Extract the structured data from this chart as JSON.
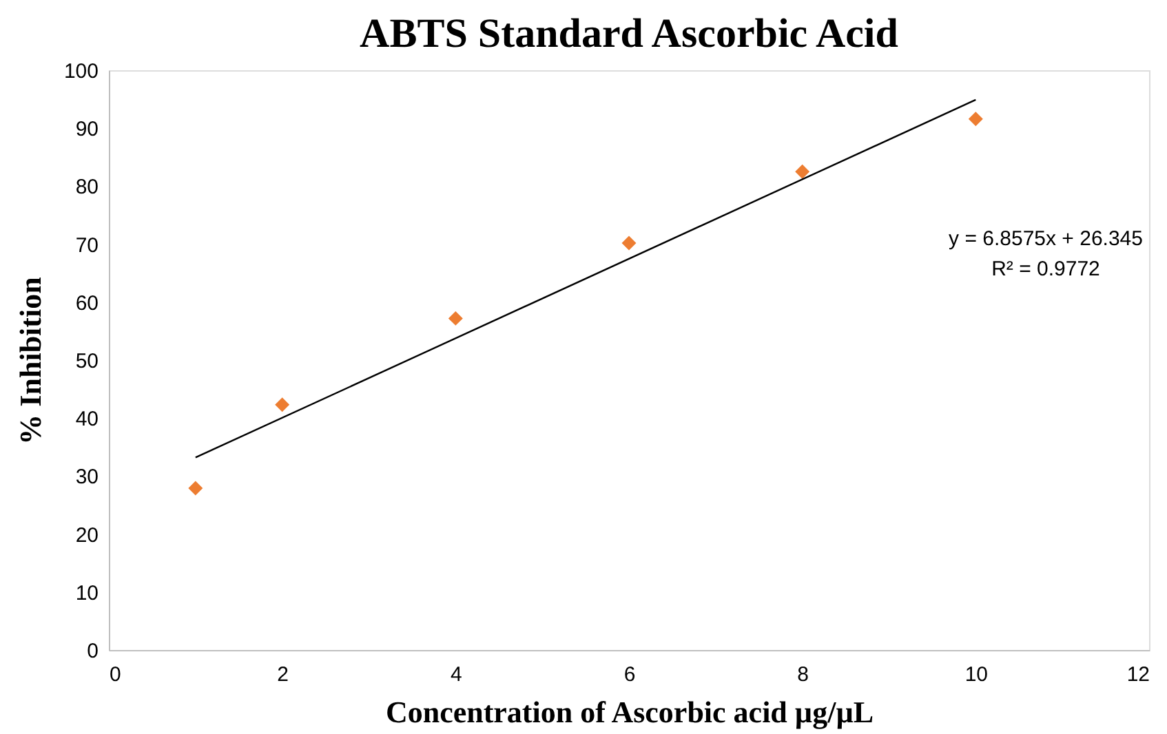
{
  "chart_data": {
    "type": "scatter",
    "title": "ABTS Standard Ascorbic Acid",
    "xlabel": "Concentration of Ascorbic acid µg/µL",
    "ylabel": "% Inhibition",
    "series": [
      {
        "color": "#ed7d31",
        "marker": "diamond",
        "x": [
          1,
          2,
          4,
          6,
          8,
          10
        ],
        "values": [
          27.9,
          42.3,
          57.2,
          70.2,
          82.5,
          91.6
        ]
      },
      {
        "type": "line",
        "color": "#000000",
        "line_style": "solid",
        "x": [
          1,
          10
        ],
        "values": [
          33.2,
          94.9
        ]
      }
    ],
    "annotations": [
      "y = 6.8575x + 26.345",
      "R² = 0.9772"
    ],
    "xlim": [
      0,
      12
    ],
    "xticks": [
      0,
      2,
      4,
      6,
      8,
      10,
      12
    ],
    "ylim": [
      0,
      100
    ],
    "yticks": [
      0,
      10,
      20,
      30,
      40,
      50,
      60,
      70,
      80,
      90,
      100
    ],
    "grid": false
  }
}
